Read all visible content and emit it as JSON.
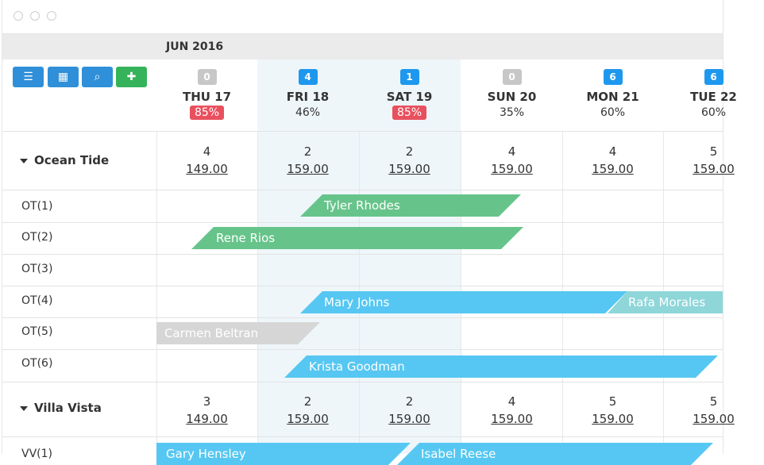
{
  "month": "JUN 2016",
  "toolbar": {
    "menu_icon": "☰",
    "calendar_icon": "▦",
    "search_icon": "⌕",
    "add_icon": "✚"
  },
  "days": [
    {
      "count": "0",
      "badge": "gray",
      "name": "THU 17",
      "occ": "85%",
      "occ_red": true
    },
    {
      "count": "4",
      "badge": "blue",
      "name": "FRI 18",
      "occ": "46%",
      "occ_red": false
    },
    {
      "count": "1",
      "badge": "blue",
      "name": "SAT 19",
      "occ": "85%",
      "occ_red": true
    },
    {
      "count": "0",
      "badge": "gray",
      "name": "SUN 20",
      "occ": "35%",
      "occ_red": false
    },
    {
      "count": "6",
      "badge": "blue",
      "name": "MON 21",
      "occ": "60%",
      "occ_red": false
    },
    {
      "count": "6",
      "badge": "blue",
      "name": "TUE 22",
      "occ": "60%",
      "occ_red": false
    }
  ],
  "groups": [
    {
      "name": "Ocean Tide",
      "avail": [
        "4",
        "2",
        "2",
        "4",
        "4",
        "5"
      ],
      "prices": [
        "149.00",
        "159.00",
        "159.00",
        "159.00",
        "159.00",
        "159.00"
      ],
      "rooms": [
        "OT(1)",
        "OT(2)",
        "OT(3)",
        "OT(4)",
        "OT(5)",
        "OT(6)"
      ]
    },
    {
      "name": "Villa Vista",
      "avail": [
        "3",
        "2",
        "2",
        "4",
        "5",
        "5"
      ],
      "prices": [
        "149.00",
        "159.00",
        "159.00",
        "159.00",
        "159.00",
        "159.00"
      ],
      "rooms": [
        "VV(1)"
      ]
    }
  ],
  "bookings": [
    {
      "guest": "Tyler Rhodes",
      "color": "green"
    },
    {
      "guest": "Rene Rios",
      "color": "green"
    },
    {
      "guest": "Mary Johns",
      "color": "blue"
    },
    {
      "guest": "Rafa Morales",
      "color": "teal"
    },
    {
      "guest": "Carmen Beltran",
      "color": "gray"
    },
    {
      "guest": "Krista Goodman",
      "color": "blue"
    },
    {
      "guest": "Gary Hensley",
      "color": "blue"
    },
    {
      "guest": "Isabel Reese",
      "color": "blue"
    }
  ]
}
